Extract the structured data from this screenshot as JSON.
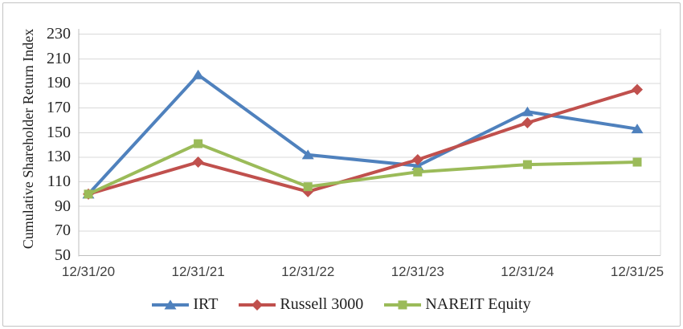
{
  "chart_data": {
    "type": "line",
    "title": "",
    "ylabel": "Cumulative Shareholder Return Index",
    "xlabel": "",
    "categories": [
      "12/31/20",
      "12/31/21",
      "12/31/22",
      "12/31/23",
      "12/31/24",
      "12/31/25"
    ],
    "y_ticks": [
      "230",
      "210",
      "190",
      "170",
      "150",
      "130",
      "110",
      "90",
      "70",
      "50"
    ],
    "ylim": [
      50,
      230
    ],
    "grid": "horizontal",
    "legend_position": "bottom",
    "series": [
      {
        "name": "IRT",
        "color": "#4F81BD",
        "marker": "triangle",
        "values": [
          100,
          197,
          132,
          123,
          167,
          153
        ]
      },
      {
        "name": "Russell 3000",
        "color": "#C0504D",
        "marker": "diamond",
        "values": [
          100,
          126,
          102,
          128,
          158,
          185
        ]
      },
      {
        "name": "NAREIT Equity",
        "color": "#9BBB59",
        "marker": "square",
        "values": [
          100,
          141,
          106,
          118,
          124,
          126
        ]
      }
    ],
    "colors": {
      "gridline": "#D9D9D9",
      "axis": "#BFBFBF",
      "plot_right_border": "#D9D9D9"
    }
  }
}
